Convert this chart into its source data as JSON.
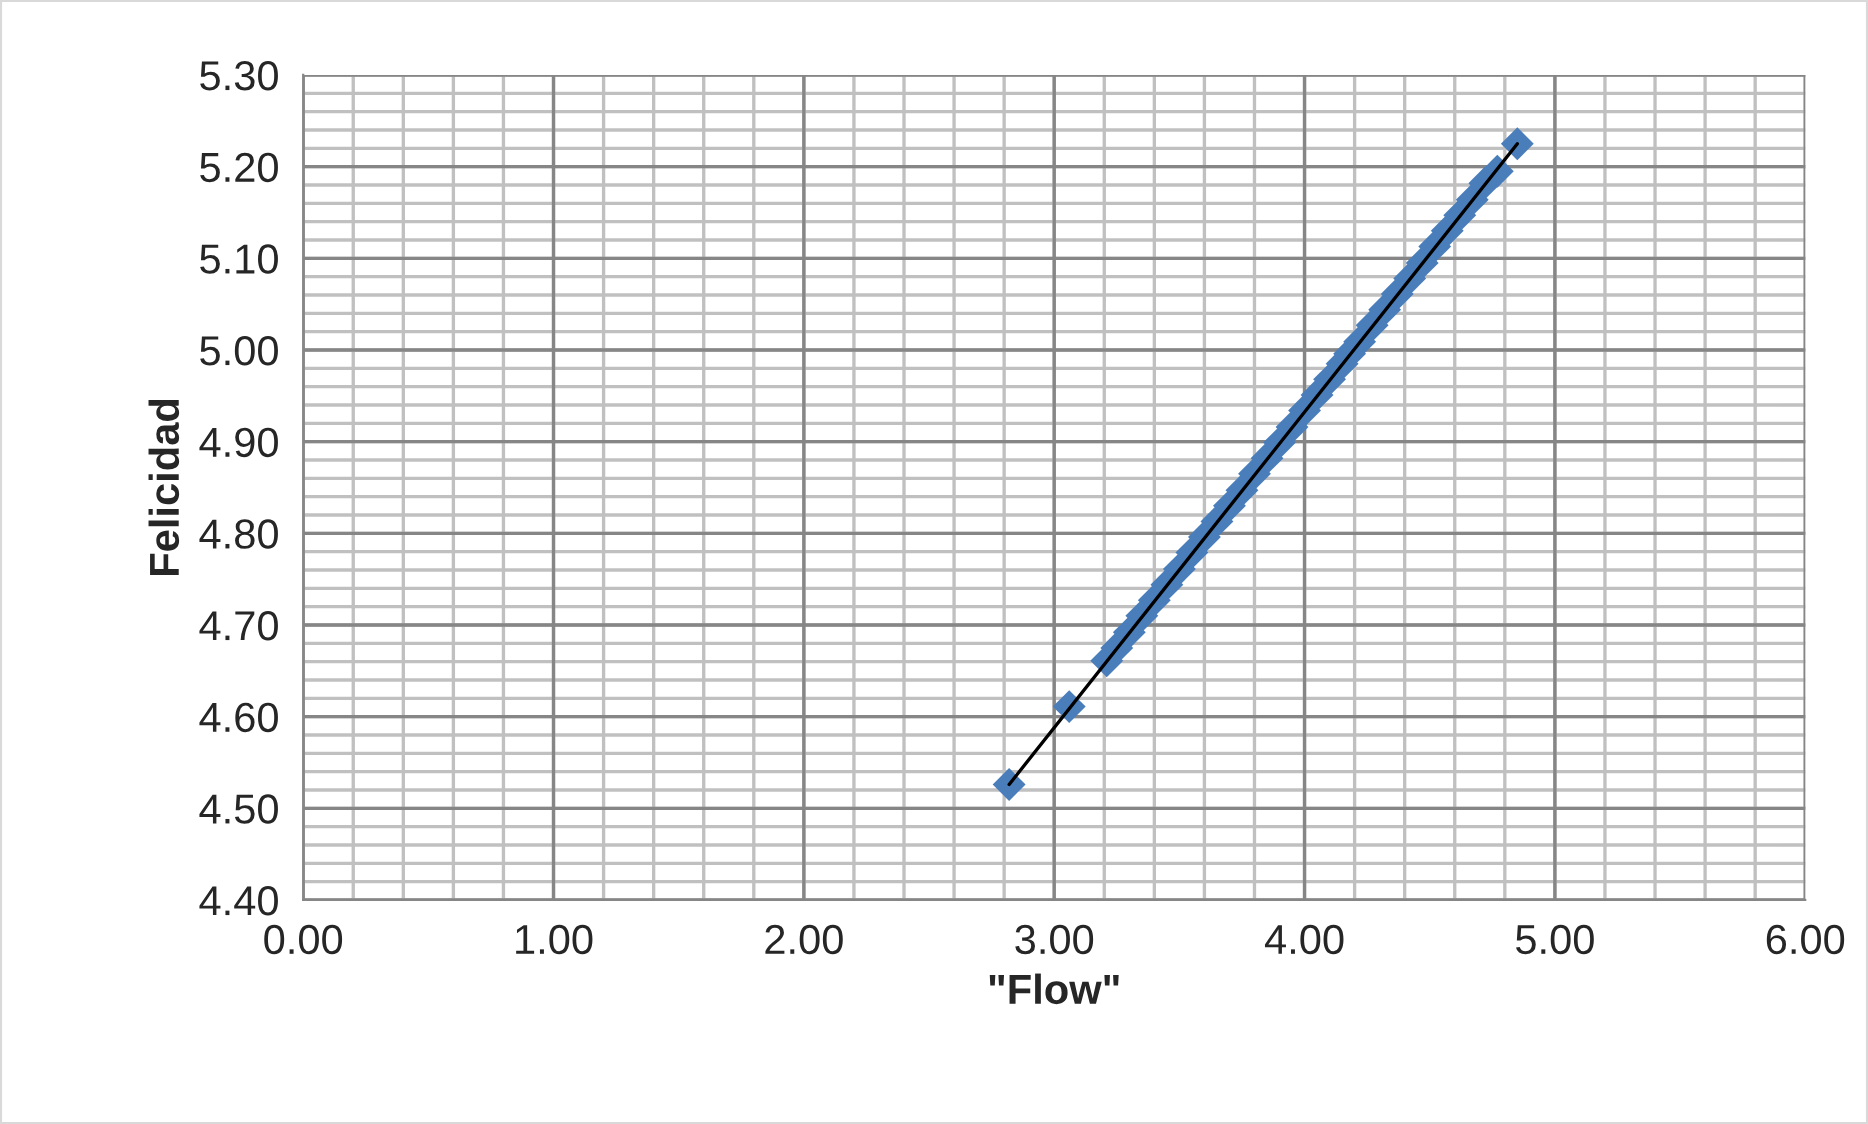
{
  "chart_data": {
    "type": "scatter",
    "xlabel": "\"Flow\"",
    "ylabel": "Felicidad",
    "xlim": [
      0,
      6
    ],
    "ylim": [
      4.4,
      5.3
    ],
    "xticks": [
      {
        "value": 0,
        "label": "0.00"
      },
      {
        "value": 1,
        "label": "1.00"
      },
      {
        "value": 2,
        "label": "2.00"
      },
      {
        "value": 3,
        "label": "3.00"
      },
      {
        "value": 4,
        "label": "4.00"
      },
      {
        "value": 5,
        "label": "5.00"
      },
      {
        "value": 6,
        "label": "6.00"
      }
    ],
    "yticks": [
      {
        "value": 4.4,
        "label": "4.40"
      },
      {
        "value": 4.5,
        "label": "4.50"
      },
      {
        "value": 4.6,
        "label": "4.60"
      },
      {
        "value": 4.7,
        "label": "4.70"
      },
      {
        "value": 4.8,
        "label": "4.80"
      },
      {
        "value": 4.9,
        "label": "4.90"
      },
      {
        "value": 5.0,
        "label": "5.00"
      },
      {
        "value": 5.1,
        "label": "5.10"
      },
      {
        "value": 5.2,
        "label": "5.20"
      },
      {
        "value": 5.3,
        "label": "5.30"
      }
    ],
    "grid": true,
    "legend": false,
    "series": [
      {
        "color": "#4a7ebb",
        "marker": "diamond",
        "x": [
          2.82,
          3.06,
          3.21,
          3.25,
          3.3,
          3.35,
          3.4,
          3.45,
          3.5,
          3.55,
          3.6,
          3.65,
          3.7,
          3.75,
          3.8,
          3.85,
          3.9,
          3.95,
          4.0,
          4.05,
          4.1,
          4.15,
          4.18,
          4.22,
          4.27,
          4.32,
          4.37,
          4.42,
          4.47,
          4.52,
          4.57,
          4.62,
          4.67,
          4.72,
          4.77,
          4.85
        ],
        "values": [
          4.526,
          4.611,
          4.661,
          4.675,
          4.692,
          4.71,
          4.727,
          4.744,
          4.761,
          4.779,
          4.796,
          4.813,
          4.83,
          4.847,
          4.865,
          4.882,
          4.899,
          4.916,
          4.934,
          4.951,
          4.968,
          4.985,
          4.996,
          5.009,
          5.027,
          5.044,
          5.061,
          5.078,
          5.095,
          5.113,
          5.13,
          5.147,
          5.164,
          5.182,
          5.195,
          5.225
        ]
      },
      {
        "type": "line",
        "color": "#000000",
        "marker": "none",
        "line_style": "solid",
        "x": [
          2.82,
          4.85
        ],
        "values": [
          4.526,
          5.225
        ]
      }
    ]
  }
}
